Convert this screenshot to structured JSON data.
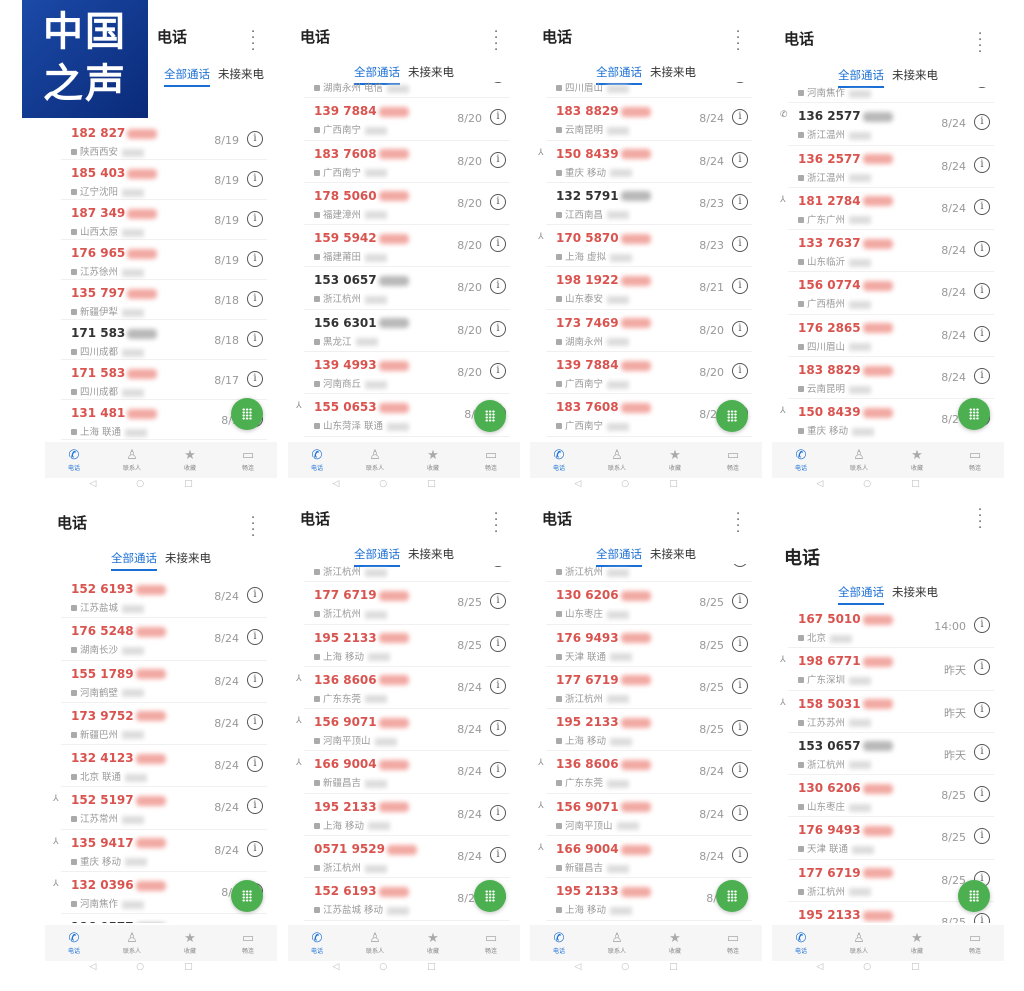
{
  "logo": {
    "text": "中国之声",
    "color": "#1b4aa8"
  },
  "colors": {
    "accent": "#1a6fd6",
    "missed": "#d9534f",
    "fab": "#4caf50"
  },
  "common": {
    "title": "电话",
    "tabs": [
      "全部通话",
      "未接来电"
    ],
    "nav": [
      {
        "label": "电话",
        "icon": "phone-icon"
      },
      {
        "label": "联系人",
        "icon": "contacts-icon"
      },
      {
        "label": "收藏",
        "icon": "star-icon"
      },
      {
        "label": "畅连",
        "icon": "video-icon"
      }
    ],
    "info_glyph": "i",
    "fab_icon": "dialpad-icon"
  },
  "panels": [
    {
      "rows": [
        {
          "num": "182 827",
          "loc": "陕西西安",
          "date": "8/19",
          "missed": true
        },
        {
          "num": "185 403",
          "loc": "辽宁沈阳",
          "date": "8/19",
          "missed": true
        },
        {
          "num": "187 349",
          "loc": "山西太原",
          "date": "8/19",
          "missed": true
        },
        {
          "num": "176 965",
          "loc": "江苏徐州",
          "date": "8/19",
          "missed": true
        },
        {
          "num": "135 797",
          "loc": "新疆伊犁",
          "date": "8/18",
          "missed": true
        },
        {
          "num": "171 583",
          "loc": "四川成都",
          "date": "8/18",
          "missed": false
        },
        {
          "num": "171 583",
          "loc": "四川成都",
          "date": "8/17",
          "missed": true
        },
        {
          "num": "131 481",
          "loc": "上海 联通",
          "date": "8/1",
          "missed": true
        }
      ]
    },
    {
      "rows": [
        {
          "num": "",
          "loc": "湖南永州 电信",
          "date": "",
          "missed": true
        },
        {
          "num": "139 7884",
          "loc": "广西南宁",
          "date": "8/20",
          "missed": true
        },
        {
          "num": "183 7608",
          "loc": "广西南宁",
          "date": "8/20",
          "missed": true
        },
        {
          "num": "178 5060",
          "loc": "福建漳州",
          "date": "8/20",
          "missed": true
        },
        {
          "num": "159 5942",
          "loc": "福建莆田",
          "date": "8/20",
          "missed": true
        },
        {
          "num": "153 0657",
          "loc": "浙江杭州",
          "date": "8/20",
          "missed": false
        },
        {
          "num": "156 6301",
          "loc": "黑龙江",
          "date": "8/20",
          "missed": false
        },
        {
          "num": "139 4993",
          "loc": "河南商丘",
          "date": "8/20",
          "missed": true
        },
        {
          "num": "155 0653",
          "loc": "山东菏泽 联通",
          "date": "8/1",
          "missed": true,
          "contact": true
        }
      ]
    },
    {
      "rows": [
        {
          "num": "",
          "loc": "四川眉山",
          "date": "8/24",
          "missed": true
        },
        {
          "num": "183 8829",
          "loc": "云南昆明",
          "date": "8/24",
          "missed": true
        },
        {
          "num": "150 8439",
          "loc": "重庆 移动",
          "date": "8/24",
          "missed": true,
          "contact": true
        },
        {
          "num": "132 5791",
          "loc": "江西南昌",
          "date": "8/23",
          "missed": false
        },
        {
          "num": "170 5870",
          "loc": "上海 虚拟",
          "date": "8/23",
          "missed": true,
          "contact": true
        },
        {
          "num": "198 1922",
          "loc": "山东泰安",
          "date": "8/21",
          "missed": true
        },
        {
          "num": "173 7469",
          "loc": "湖南永州",
          "date": "8/20",
          "missed": true
        },
        {
          "num": "139 7884",
          "loc": "广西南宁",
          "date": "8/20",
          "missed": true
        },
        {
          "num": "183 7608",
          "loc": "广西南宁",
          "date": "8/20",
          "missed": true
        }
      ]
    },
    {
      "rows": [
        {
          "num": "",
          "loc": "河南焦作",
          "date": "8/24",
          "missed": true
        },
        {
          "num": "136 2577",
          "loc": "浙江温州",
          "date": "8/24",
          "missed": false,
          "outgoing": true
        },
        {
          "num": "136 2577",
          "loc": "浙江温州",
          "date": "8/24",
          "missed": true
        },
        {
          "num": "181 2784",
          "loc": "广东广州",
          "date": "8/24",
          "missed": true,
          "contact": true
        },
        {
          "num": "133 7637",
          "loc": "山东临沂",
          "date": "8/24",
          "missed": true
        },
        {
          "num": "156 0774",
          "loc": "广西梧州",
          "date": "8/24",
          "missed": true
        },
        {
          "num": "176 2865",
          "loc": "四川眉山",
          "date": "8/24",
          "missed": true
        },
        {
          "num": "183 8829",
          "loc": "云南昆明",
          "date": "8/24",
          "missed": true
        },
        {
          "num": "150 8439",
          "loc": "重庆 移动",
          "date": "8/24",
          "missed": true,
          "contact": true
        }
      ]
    },
    {
      "rows": [
        {
          "num": "152 6193",
          "loc": "江苏盐城",
          "date": "8/24",
          "missed": true
        },
        {
          "num": "176 5248",
          "loc": "湖南长沙",
          "date": "8/24",
          "missed": true
        },
        {
          "num": "155 1789",
          "loc": "河南鹤壁",
          "date": "8/24",
          "missed": true
        },
        {
          "num": "173 9752",
          "loc": "新疆巴州",
          "date": "8/24",
          "missed": true
        },
        {
          "num": "132 4123",
          "loc": "北京 联通",
          "date": "8/24",
          "missed": true
        },
        {
          "num": "152 5197",
          "loc": "江苏常州",
          "date": "8/24",
          "missed": true,
          "contact": true
        },
        {
          "num": "135 9417",
          "loc": "重庆 移动",
          "date": "8/24",
          "missed": true,
          "contact": true
        },
        {
          "num": "132 0396",
          "loc": "河南焦作",
          "date": "8/2",
          "missed": true,
          "contact": true
        },
        {
          "num": "186 0577",
          "loc": "",
          "date": "",
          "missed": false
        }
      ]
    },
    {
      "rows": [
        {
          "num": "",
          "loc": "浙江杭州",
          "date": "8/25",
          "missed": true
        },
        {
          "num": "177 6719",
          "loc": "浙江杭州",
          "date": "8/25",
          "missed": true
        },
        {
          "num": "195 2133",
          "loc": "上海 移动",
          "date": "8/25",
          "missed": true
        },
        {
          "num": "136 8606",
          "loc": "广东东莞",
          "date": "8/24",
          "missed": true,
          "contact": true
        },
        {
          "num": "156 9071",
          "loc": "河南平顶山",
          "date": "8/24",
          "missed": true,
          "contact": true
        },
        {
          "num": "166 9004",
          "loc": "新疆昌吉",
          "date": "8/24",
          "missed": true,
          "contact": true
        },
        {
          "num": "195 2133",
          "loc": "上海 移动",
          "date": "8/24",
          "missed": true
        },
        {
          "num": "0571 9529",
          "loc": "浙江杭州",
          "date": "8/24",
          "missed": true
        },
        {
          "num": "152 6193",
          "loc": "江苏盐城 移动",
          "date": "8/24",
          "missed": true
        }
      ]
    },
    {
      "rows": [
        {
          "num": "",
          "loc": "浙江杭州",
          "date": "",
          "missed": true
        },
        {
          "num": "130 6206",
          "loc": "山东枣庄",
          "date": "8/25",
          "missed": true
        },
        {
          "num": "176 9493",
          "loc": "天津 联通",
          "date": "8/25",
          "missed": true
        },
        {
          "num": "177 6719",
          "loc": "浙江杭州",
          "date": "8/25",
          "missed": true
        },
        {
          "num": "195 2133",
          "loc": "上海 移动",
          "date": "8/25",
          "missed": true
        },
        {
          "num": "136 8606",
          "loc": "广东东莞",
          "date": "8/24",
          "missed": true,
          "contact": true
        },
        {
          "num": "156 9071",
          "loc": "河南平顶山",
          "date": "8/24",
          "missed": true,
          "contact": true
        },
        {
          "num": "166 9004",
          "loc": "新疆昌吉",
          "date": "8/24",
          "missed": true,
          "contact": true
        },
        {
          "num": "195 2133",
          "loc": "上海 移动",
          "date": "8/2",
          "missed": true
        }
      ]
    },
    {
      "rows": [
        {
          "num": "167 5010",
          "loc": "北京",
          "date": "14:00",
          "missed": true
        },
        {
          "num": "198 6771",
          "loc": "广东深圳",
          "date": "昨天",
          "missed": true,
          "contact": true
        },
        {
          "num": "158 5031",
          "loc": "江苏苏州",
          "date": "昨天",
          "missed": true,
          "contact": true
        },
        {
          "num": "153 0657",
          "loc": "浙江杭州",
          "date": "昨天",
          "missed": false
        },
        {
          "num": "130 6206",
          "loc": "山东枣庄",
          "date": "8/25",
          "missed": true
        },
        {
          "num": "176 9493",
          "loc": "天津 联通",
          "date": "8/25",
          "missed": true
        },
        {
          "num": "177 6719",
          "loc": "浙江杭州",
          "date": "8/25",
          "missed": true
        },
        {
          "num": "195 2133",
          "loc": "",
          "date": "8/25",
          "missed": true
        }
      ]
    }
  ]
}
